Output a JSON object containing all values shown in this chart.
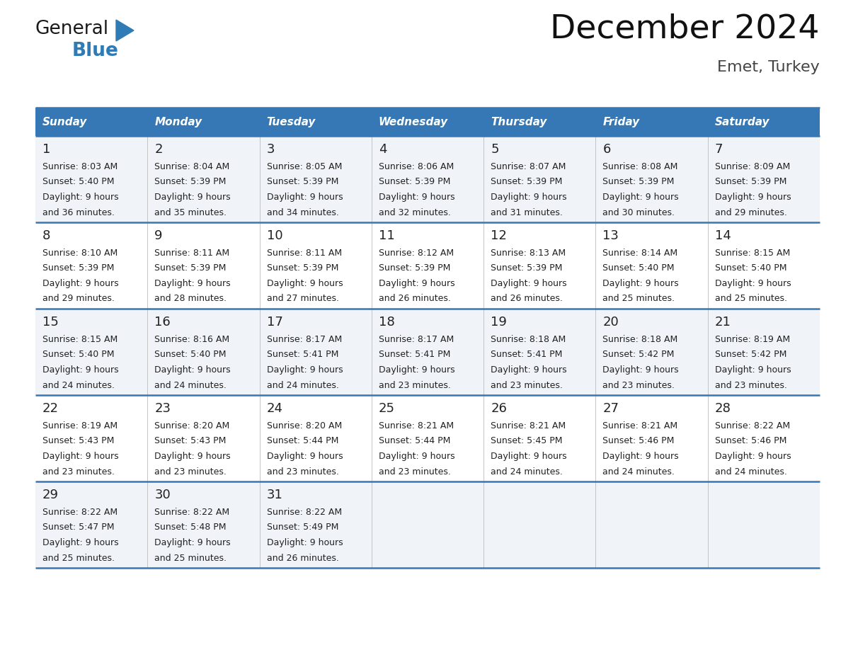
{
  "title": "December 2024",
  "subtitle": "Emet, Turkey",
  "header_color": "#3578B5",
  "header_text_color": "#FFFFFF",
  "day_names": [
    "Sunday",
    "Monday",
    "Tuesday",
    "Wednesday",
    "Thursday",
    "Friday",
    "Saturday"
  ],
  "background_color": "#FFFFFF",
  "row_bg_odd": "#F0F4F8",
  "row_bg_even": "#FFFFFF",
  "border_color": "#3578B5",
  "cell_text_color": "#222222",
  "logo_general_color": "#1A1A1A",
  "logo_blue_color": "#2E7BB5",
  "weeks": [
    {
      "days": [
        {
          "date": "1",
          "sunrise": "8:03 AM",
          "sunset": "5:40 PM",
          "daylight": "9 hours and 36 minutes."
        },
        {
          "date": "2",
          "sunrise": "8:04 AM",
          "sunset": "5:39 PM",
          "daylight": "9 hours and 35 minutes."
        },
        {
          "date": "3",
          "sunrise": "8:05 AM",
          "sunset": "5:39 PM",
          "daylight": "9 hours and 34 minutes."
        },
        {
          "date": "4",
          "sunrise": "8:06 AM",
          "sunset": "5:39 PM",
          "daylight": "9 hours and 32 minutes."
        },
        {
          "date": "5",
          "sunrise": "8:07 AM",
          "sunset": "5:39 PM",
          "daylight": "9 hours and 31 minutes."
        },
        {
          "date": "6",
          "sunrise": "8:08 AM",
          "sunset": "5:39 PM",
          "daylight": "9 hours and 30 minutes."
        },
        {
          "date": "7",
          "sunrise": "8:09 AM",
          "sunset": "5:39 PM",
          "daylight": "9 hours and 29 minutes."
        }
      ]
    },
    {
      "days": [
        {
          "date": "8",
          "sunrise": "8:10 AM",
          "sunset": "5:39 PM",
          "daylight": "9 hours and 29 minutes."
        },
        {
          "date": "9",
          "sunrise": "8:11 AM",
          "sunset": "5:39 PM",
          "daylight": "9 hours and 28 minutes."
        },
        {
          "date": "10",
          "sunrise": "8:11 AM",
          "sunset": "5:39 PM",
          "daylight": "9 hours and 27 minutes."
        },
        {
          "date": "11",
          "sunrise": "8:12 AM",
          "sunset": "5:39 PM",
          "daylight": "9 hours and 26 minutes."
        },
        {
          "date": "12",
          "sunrise": "8:13 AM",
          "sunset": "5:39 PM",
          "daylight": "9 hours and 26 minutes."
        },
        {
          "date": "13",
          "sunrise": "8:14 AM",
          "sunset": "5:40 PM",
          "daylight": "9 hours and 25 minutes."
        },
        {
          "date": "14",
          "sunrise": "8:15 AM",
          "sunset": "5:40 PM",
          "daylight": "9 hours and 25 minutes."
        }
      ]
    },
    {
      "days": [
        {
          "date": "15",
          "sunrise": "8:15 AM",
          "sunset": "5:40 PM",
          "daylight": "9 hours and 24 minutes."
        },
        {
          "date": "16",
          "sunrise": "8:16 AM",
          "sunset": "5:40 PM",
          "daylight": "9 hours and 24 minutes."
        },
        {
          "date": "17",
          "sunrise": "8:17 AM",
          "sunset": "5:41 PM",
          "daylight": "9 hours and 24 minutes."
        },
        {
          "date": "18",
          "sunrise": "8:17 AM",
          "sunset": "5:41 PM",
          "daylight": "9 hours and 23 minutes."
        },
        {
          "date": "19",
          "sunrise": "8:18 AM",
          "sunset": "5:41 PM",
          "daylight": "9 hours and 23 minutes."
        },
        {
          "date": "20",
          "sunrise": "8:18 AM",
          "sunset": "5:42 PM",
          "daylight": "9 hours and 23 minutes."
        },
        {
          "date": "21",
          "sunrise": "8:19 AM",
          "sunset": "5:42 PM",
          "daylight": "9 hours and 23 minutes."
        }
      ]
    },
    {
      "days": [
        {
          "date": "22",
          "sunrise": "8:19 AM",
          "sunset": "5:43 PM",
          "daylight": "9 hours and 23 minutes."
        },
        {
          "date": "23",
          "sunrise": "8:20 AM",
          "sunset": "5:43 PM",
          "daylight": "9 hours and 23 minutes."
        },
        {
          "date": "24",
          "sunrise": "8:20 AM",
          "sunset": "5:44 PM",
          "daylight": "9 hours and 23 minutes."
        },
        {
          "date": "25",
          "sunrise": "8:21 AM",
          "sunset": "5:44 PM",
          "daylight": "9 hours and 23 minutes."
        },
        {
          "date": "26",
          "sunrise": "8:21 AM",
          "sunset": "5:45 PM",
          "daylight": "9 hours and 24 minutes."
        },
        {
          "date": "27",
          "sunrise": "8:21 AM",
          "sunset": "5:46 PM",
          "daylight": "9 hours and 24 minutes."
        },
        {
          "date": "28",
          "sunrise": "8:22 AM",
          "sunset": "5:46 PM",
          "daylight": "9 hours and 24 minutes."
        }
      ]
    },
    {
      "days": [
        {
          "date": "29",
          "sunrise": "8:22 AM",
          "sunset": "5:47 PM",
          "daylight": "9 hours and 25 minutes."
        },
        {
          "date": "30",
          "sunrise": "8:22 AM",
          "sunset": "5:48 PM",
          "daylight": "9 hours and 25 minutes."
        },
        {
          "date": "31",
          "sunrise": "8:22 AM",
          "sunset": "5:49 PM",
          "daylight": "9 hours and 26 minutes."
        },
        {
          "date": "",
          "sunrise": "",
          "sunset": "",
          "daylight": ""
        },
        {
          "date": "",
          "sunrise": "",
          "sunset": "",
          "daylight": ""
        },
        {
          "date": "",
          "sunrise": "",
          "sunset": "",
          "daylight": ""
        },
        {
          "date": "",
          "sunrise": "",
          "sunset": "",
          "daylight": ""
        }
      ]
    }
  ]
}
